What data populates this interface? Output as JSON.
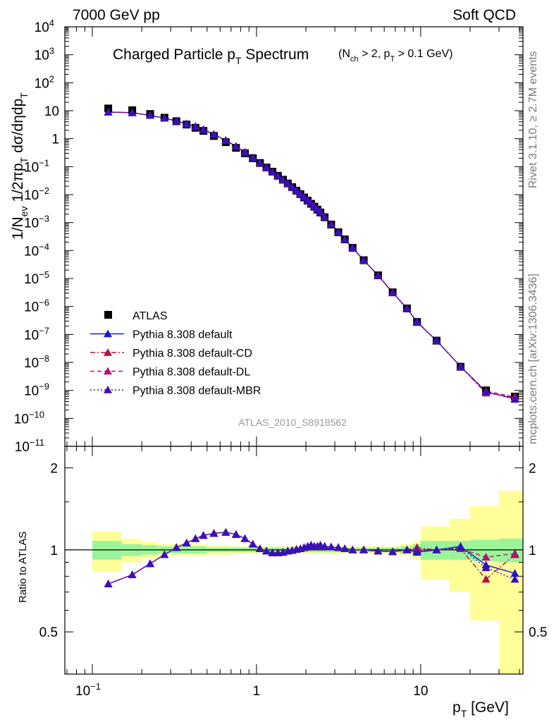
{
  "header": {
    "left": "7000 GeV pp",
    "right": "Soft QCD"
  },
  "side_labels": {
    "rivet": "Rivet 3.1.10, ≥ 2.7M events",
    "mcplots": "mcplots.cern.ch [arXiv:1306.3436]"
  },
  "analysis_id": "ATLAS_2010_S8918562",
  "colors": {
    "data": "#000000",
    "default": "#1a1acc",
    "cd": "#b0124a",
    "dl": "#b0127a",
    "mbr": "#3a10b8",
    "band_inner": "#9af59a",
    "band_outer": "#ffff99"
  },
  "chart_data": [
    {
      "type": "scatter",
      "panel": "main",
      "title": "Charged Particle p_T Spectrum",
      "title_cut": "(N_ch > 2, p_T > 0.1 GeV)",
      "ylabel": "1/N_ev 1/2πp_T dσ/dηdp_T",
      "xscale": "log",
      "yscale": "log",
      "xlim": [
        0.068,
        42
      ],
      "ylim": [
        1e-11,
        10000.0
      ],
      "legend_position": "left-middle",
      "x": [
        0.125,
        0.175,
        0.225,
        0.275,
        0.325,
        0.375,
        0.425,
        0.475,
        0.55,
        0.65,
        0.75,
        0.85,
        0.95,
        1.05,
        1.15,
        1.25,
        1.35,
        1.45,
        1.55,
        1.65,
        1.75,
        1.85,
        1.95,
        2.05,
        2.15,
        2.25,
        2.35,
        2.45,
        2.6,
        2.85,
        3.15,
        3.45,
        3.85,
        4.5,
        5.5,
        6.75,
        8.25,
        9.5,
        12.5,
        17.5,
        25,
        37.5
      ],
      "series": [
        {
          "name": "ATLAS",
          "marker": "square",
          "values": [
            12,
            10.4,
            7.6,
            5.6,
            4.2,
            3.2,
            2.45,
            1.9,
            1.25,
            0.75,
            0.47,
            0.3,
            0.2,
            0.135,
            0.093,
            0.066,
            0.047,
            0.034,
            0.025,
            0.0185,
            0.0138,
            0.0104,
            0.0079,
            0.0061,
            0.0047,
            0.0037,
            0.0029,
            0.0023,
            0.00155,
            0.00085,
            0.00045,
            0.00025,
            0.000125,
            4.5e-05,
            1.3e-05,
            3.2e-06,
            8.5e-07,
            2.8e-07,
            6e-08,
            7e-09,
            1e-09,
            6e-10
          ]
        },
        {
          "name": "Pythia 8.308 default",
          "marker": "triangle",
          "line": "solid",
          "values": [
            8.9,
            8.5,
            6.8,
            5.4,
            4.3,
            3.4,
            2.7,
            2.1,
            1.43,
            0.87,
            0.53,
            0.33,
            0.21,
            0.137,
            0.092,
            0.064,
            0.046,
            0.033,
            0.0246,
            0.0184,
            0.0139,
            0.0106,
            0.0081,
            0.0063,
            0.0049,
            0.0038,
            0.003,
            0.0024,
            0.0016,
            0.00087,
            0.00046,
            0.00025,
            0.000125,
            4.5e-05,
            1.3e-05,
            3.15e-06,
            8.5e-07,
            2.75e-07,
            6e-08,
            7.2e-09,
            8.8e-10,
            5e-10
          ]
        },
        {
          "name": "Pythia 8.308 default-CD",
          "marker": "triangle",
          "line": "dashdot",
          "values": [
            8.9,
            8.5,
            6.8,
            5.4,
            4.3,
            3.4,
            2.7,
            2.1,
            1.43,
            0.87,
            0.53,
            0.33,
            0.21,
            0.137,
            0.092,
            0.064,
            0.046,
            0.033,
            0.0246,
            0.0184,
            0.0139,
            0.0106,
            0.0081,
            0.0063,
            0.0049,
            0.0038,
            0.003,
            0.0024,
            0.0016,
            0.00087,
            0.00046,
            0.00025,
            0.000125,
            4.5e-05,
            1.3e-05,
            3.15e-06,
            8.5e-07,
            2.85e-07,
            6e-08,
            7.1e-09,
            8e-10,
            5.8e-10
          ]
        },
        {
          "name": "Pythia 8.308 default-DL",
          "marker": "triangle",
          "line": "dashed",
          "values": [
            8.9,
            8.5,
            6.8,
            5.4,
            4.3,
            3.4,
            2.7,
            2.1,
            1.43,
            0.87,
            0.53,
            0.33,
            0.21,
            0.137,
            0.092,
            0.064,
            0.046,
            0.033,
            0.0246,
            0.0184,
            0.0139,
            0.0106,
            0.0081,
            0.0063,
            0.0049,
            0.0038,
            0.003,
            0.0024,
            0.0016,
            0.00087,
            0.00046,
            0.00025,
            0.000125,
            4.5e-05,
            1.3e-05,
            3.15e-06,
            8.5e-07,
            2.8e-07,
            6e-08,
            7.1e-09,
            9.5e-10,
            5.8e-10
          ]
        },
        {
          "name": "Pythia 8.308 default-MBR",
          "marker": "triangle",
          "line": "dotted",
          "values": [
            8.9,
            8.5,
            6.8,
            5.4,
            4.3,
            3.4,
            2.7,
            2.1,
            1.43,
            0.87,
            0.53,
            0.33,
            0.21,
            0.137,
            0.092,
            0.064,
            0.046,
            0.033,
            0.0246,
            0.0184,
            0.0139,
            0.0106,
            0.0081,
            0.0063,
            0.0049,
            0.0038,
            0.003,
            0.0024,
            0.0016,
            0.00087,
            0.00046,
            0.00025,
            0.000125,
            4.5e-05,
            1.3e-05,
            3.15e-06,
            8.5e-07,
            2.8e-07,
            6e-08,
            7.2e-09,
            9e-10,
            4.8e-10
          ]
        }
      ],
      "y_tick_labels": [
        "10^-11",
        "10^-10",
        "10^-9",
        "10^-8",
        "10^-7",
        "10^-6",
        "10^-5",
        "10^-4",
        "10^-3",
        "10^-2",
        "10^-1",
        "1",
        "10",
        "10^2",
        "10^3",
        "10^4"
      ]
    },
    {
      "type": "line",
      "panel": "ratio",
      "ylabel": "Ratio to ATLAS",
      "xlabel": "p_T [GeV]",
      "xscale": "log",
      "xlim": [
        0.068,
        42
      ],
      "ylim": [
        0.35,
        2.4
      ],
      "y_ticks": [
        "0.5",
        "1",
        "2"
      ],
      "x_ticks": [
        "10^-1",
        "1",
        "10"
      ],
      "x": [
        0.125,
        0.175,
        0.225,
        0.275,
        0.325,
        0.375,
        0.425,
        0.475,
        0.55,
        0.65,
        0.75,
        0.85,
        0.95,
        1.05,
        1.15,
        1.25,
        1.35,
        1.45,
        1.55,
        1.65,
        1.75,
        1.85,
        1.95,
        2.05,
        2.15,
        2.25,
        2.35,
        2.45,
        2.6,
        2.85,
        3.15,
        3.45,
        3.85,
        4.5,
        5.5,
        6.75,
        8.25,
        9.5,
        12.5,
        17.5,
        25,
        37.5
      ],
      "bins": [
        [
          0.1,
          0.15
        ],
        [
          0.15,
          0.2
        ],
        [
          0.2,
          0.25
        ],
        [
          0.25,
          0.3
        ],
        [
          0.3,
          0.35
        ],
        [
          0.35,
          0.4
        ],
        [
          0.4,
          0.45
        ],
        [
          0.45,
          0.5
        ],
        [
          0.5,
          0.6
        ],
        [
          0.6,
          0.7
        ],
        [
          0.7,
          0.8
        ],
        [
          0.8,
          0.9
        ],
        [
          0.9,
          1.0
        ],
        [
          1.0,
          1.1
        ],
        [
          1.1,
          1.2
        ],
        [
          1.2,
          1.3
        ],
        [
          1.3,
          1.4
        ],
        [
          1.4,
          1.5
        ],
        [
          1.5,
          1.6
        ],
        [
          1.6,
          1.7
        ],
        [
          1.7,
          1.8
        ],
        [
          1.8,
          1.9
        ],
        [
          1.9,
          2.0
        ],
        [
          2.0,
          2.1
        ],
        [
          2.1,
          2.2
        ],
        [
          2.2,
          2.3
        ],
        [
          2.3,
          2.4
        ],
        [
          2.4,
          2.5
        ],
        [
          2.5,
          2.7
        ],
        [
          2.7,
          3.0
        ],
        [
          3.0,
          3.3
        ],
        [
          3.3,
          3.6
        ],
        [
          3.6,
          4.1
        ],
        [
          4.1,
          5.0
        ],
        [
          5.0,
          6.0
        ],
        [
          6.0,
          7.5
        ],
        [
          7.5,
          9.0
        ],
        [
          9.0,
          10.0
        ],
        [
          10.0,
          15.0
        ],
        [
          15.0,
          20.0
        ],
        [
          20.0,
          30.0
        ],
        [
          30.0,
          50.0
        ]
      ],
      "band_inner_half_width": [
        0.08,
        0.05,
        0.04,
        0.03,
        0.03,
        0.03,
        0.03,
        0.03,
        0.02,
        0.02,
        0.02,
        0.02,
        0.02,
        0.02,
        0.02,
        0.02,
        0.02,
        0.02,
        0.02,
        0.02,
        0.02,
        0.02,
        0.02,
        0.02,
        0.02,
        0.02,
        0.02,
        0.02,
        0.02,
        0.02,
        0.02,
        0.02,
        0.02,
        0.02,
        0.02,
        0.02,
        0.03,
        0.05,
        0.08,
        0.08,
        0.09,
        0.1
      ],
      "band_outer_half_width": [
        0.17,
        0.1,
        0.07,
        0.05,
        0.05,
        0.05,
        0.05,
        0.05,
        0.04,
        0.04,
        0.03,
        0.03,
        0.03,
        0.03,
        0.03,
        0.03,
        0.03,
        0.03,
        0.03,
        0.03,
        0.03,
        0.03,
        0.03,
        0.03,
        0.03,
        0.03,
        0.03,
        0.03,
        0.03,
        0.03,
        0.03,
        0.03,
        0.03,
        0.03,
        0.03,
        0.03,
        0.05,
        0.08,
        0.22,
        0.3,
        0.45,
        0.65
      ],
      "series": [
        {
          "name": "Pythia 8.308 default",
          "line": "solid",
          "values": [
            0.75,
            0.81,
            0.89,
            0.96,
            1.02,
            1.06,
            1.1,
            1.13,
            1.15,
            1.16,
            1.14,
            1.1,
            1.05,
            1.01,
            0.99,
            0.975,
            0.975,
            0.98,
            0.99,
            0.995,
            1.005,
            1.01,
            1.02,
            1.03,
            1.04,
            1.03,
            1.03,
            1.04,
            1.03,
            1.025,
            1.02,
            1.01,
            1.0,
            1.0,
            0.99,
            0.985,
            1.0,
            0.98,
            1.0,
            1.03,
            0.88,
            0.82
          ]
        },
        {
          "name": "Pythia 8.308 default-CD",
          "line": "dashdot",
          "values": [
            0.75,
            0.81,
            0.89,
            0.96,
            1.02,
            1.06,
            1.1,
            1.13,
            1.15,
            1.16,
            1.14,
            1.1,
            1.05,
            1.01,
            0.99,
            0.975,
            0.975,
            0.98,
            0.99,
            0.995,
            1.005,
            1.01,
            1.02,
            1.03,
            1.04,
            1.03,
            1.03,
            1.04,
            1.03,
            1.025,
            1.02,
            1.01,
            1.0,
            1.0,
            0.99,
            0.985,
            1.0,
            1.02,
            1.0,
            1.01,
            0.78,
            0.96
          ]
        },
        {
          "name": "Pythia 8.308 default-DL",
          "line": "dashed",
          "values": [
            0.75,
            0.81,
            0.89,
            0.96,
            1.02,
            1.06,
            1.1,
            1.13,
            1.15,
            1.16,
            1.14,
            1.1,
            1.05,
            1.01,
            0.99,
            0.975,
            0.975,
            0.98,
            0.99,
            0.995,
            1.005,
            1.01,
            1.02,
            1.03,
            1.04,
            1.03,
            1.03,
            1.04,
            1.03,
            1.025,
            1.02,
            1.01,
            1.0,
            1.0,
            0.99,
            0.985,
            1.0,
            1.0,
            1.0,
            1.01,
            0.94,
            0.97
          ]
        },
        {
          "name": "Pythia 8.308 default-MBR",
          "line": "dotted",
          "values": [
            0.75,
            0.81,
            0.89,
            0.96,
            1.02,
            1.06,
            1.1,
            1.13,
            1.15,
            1.16,
            1.14,
            1.1,
            1.05,
            1.01,
            0.99,
            0.975,
            0.975,
            0.98,
            0.99,
            0.995,
            1.005,
            1.01,
            1.02,
            1.03,
            1.04,
            1.03,
            1.03,
            1.04,
            1.03,
            1.025,
            1.02,
            1.01,
            1.0,
            1.0,
            0.99,
            0.985,
            1.0,
            0.99,
            1.0,
            1.02,
            0.86,
            0.78
          ]
        }
      ]
    }
  ]
}
